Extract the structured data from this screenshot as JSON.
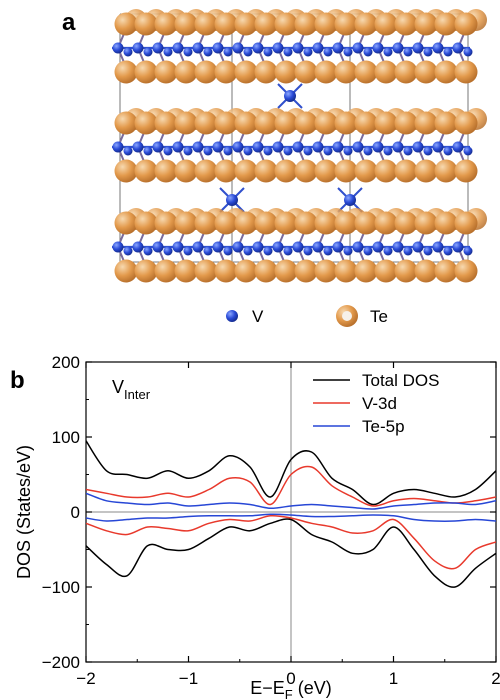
{
  "panel_a": {
    "label": "a",
    "legend": [
      {
        "name": "V",
        "color": "#2a4bd7"
      },
      {
        "name": "Te",
        "color": "#d9913f"
      }
    ]
  },
  "panel_b": {
    "label": "b",
    "annotation": {
      "main": "V",
      "sub": "Inter"
    }
  },
  "chart_data": {
    "type": "line",
    "title": "",
    "annotation": "V_Inter",
    "xlabel": "E−E_F (eV)",
    "xlabel_main": "E−E",
    "xlabel_sub": "F",
    "xlabel_tail": " (eV)",
    "ylabel": "DOS (States/eV)",
    "xlim": [
      -2,
      2
    ],
    "ylim": [
      -200,
      200
    ],
    "xticks": [
      -2,
      -1,
      0,
      1,
      2
    ],
    "xtick_labels": [
      "−2",
      "−1",
      "0",
      "1",
      "2"
    ],
    "yticks": [
      -200,
      -100,
      0,
      100,
      200
    ],
    "ytick_labels": [
      "−200",
      "−100",
      "0",
      "100",
      "200"
    ],
    "grid": false,
    "legend_position": "top-right",
    "x": [
      -2.0,
      -1.8,
      -1.6,
      -1.4,
      -1.2,
      -1.0,
      -0.8,
      -0.6,
      -0.4,
      -0.2,
      0.0,
      0.2,
      0.4,
      0.6,
      0.8,
      1.0,
      1.2,
      1.4,
      1.6,
      1.8,
      2.0
    ],
    "series": [
      {
        "name": "Total DOS",
        "color": "#000000",
        "values": [
          95,
          55,
          50,
          45,
          55,
          45,
          55,
          75,
          60,
          20,
          70,
          80,
          45,
          30,
          10,
          25,
          30,
          25,
          20,
          30,
          55
        ]
      },
      {
        "name": "",
        "color": "#000000",
        "values": [
          -45,
          -70,
          -85,
          -45,
          -50,
          -50,
          -35,
          -20,
          -25,
          -15,
          -10,
          -30,
          -40,
          -55,
          -50,
          -20,
          -50,
          -85,
          -100,
          -75,
          -55
        ]
      },
      {
        "name": "V-3d",
        "color": "#e8392c",
        "values": [
          30,
          25,
          20,
          20,
          25,
          20,
          30,
          45,
          40,
          10,
          50,
          60,
          35,
          20,
          8,
          15,
          18,
          15,
          12,
          15,
          20
        ]
      },
      {
        "name": "",
        "color": "#e8392c",
        "values": [
          -15,
          -25,
          -30,
          -20,
          -22,
          -25,
          -15,
          -10,
          -12,
          -5,
          -8,
          -15,
          -20,
          -28,
          -25,
          -10,
          -35,
          -65,
          -75,
          -50,
          -40
        ]
      },
      {
        "name": "Te-5p",
        "color": "#2747d6",
        "values": [
          25,
          15,
          12,
          10,
          12,
          8,
          10,
          12,
          10,
          5,
          8,
          10,
          8,
          6,
          4,
          8,
          10,
          12,
          12,
          10,
          15
        ]
      },
      {
        "name": "",
        "color": "#2747d6",
        "values": [
          -8,
          -12,
          -10,
          -8,
          -8,
          -6,
          -5,
          -5,
          -5,
          -3,
          -4,
          -6,
          -6,
          -5,
          -4,
          -5,
          -10,
          -12,
          -12,
          -10,
          -12
        ]
      }
    ]
  }
}
